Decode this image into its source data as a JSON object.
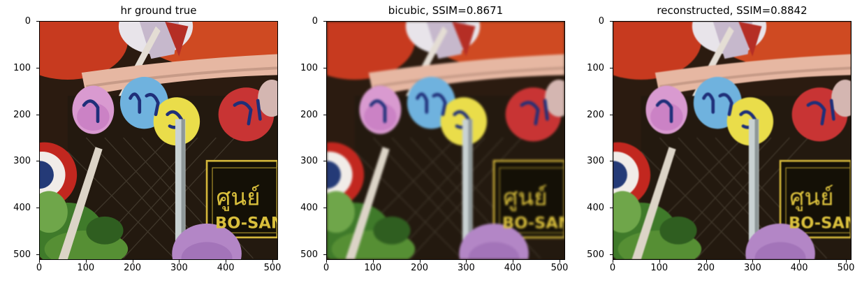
{
  "figure": {
    "panels": [
      {
        "title": "hr ground true",
        "variant": "sharp"
      },
      {
        "title": "bicubic, SSIM=0.8671",
        "variant": "blur"
      },
      {
        "title": "reconstructed, SSIM=0.8842",
        "variant": "mid"
      }
    ],
    "x_ticks": [
      "0",
      "100",
      "200",
      "300",
      "400",
      "500"
    ],
    "y_ticks": [
      "0",
      "100",
      "200",
      "300",
      "400",
      "500"
    ],
    "image_extent": [
      0,
      512
    ],
    "sign_text": {
      "thai": "ศูนย์",
      "latin": "BO-SAN"
    }
  }
}
